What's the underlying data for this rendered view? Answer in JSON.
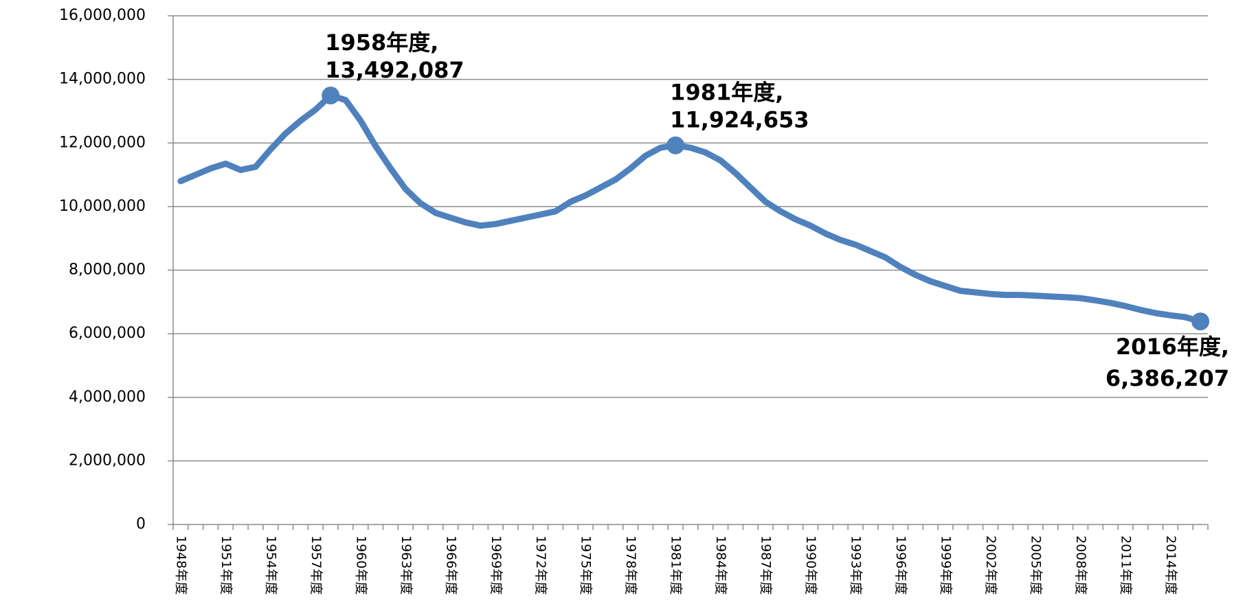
{
  "chart_data": {
    "type": "line",
    "categories": [
      "1948年度",
      null,
      null,
      "1951年度",
      null,
      null,
      "1954年度",
      null,
      null,
      "1957年度",
      null,
      null,
      "1960年度",
      null,
      null,
      "1963年度",
      null,
      null,
      "1966年度",
      null,
      null,
      "1969年度",
      null,
      null,
      "1972年度",
      null,
      null,
      "1975年度",
      null,
      null,
      "1978年度",
      null,
      null,
      "1981年度",
      null,
      null,
      "1984年度",
      null,
      null,
      "1987年度",
      null,
      null,
      "1990年度",
      null,
      null,
      "1993年度",
      null,
      null,
      "1996年度",
      null,
      null,
      "1999年度",
      null,
      null,
      "2002年度",
      null,
      null,
      "2005年度",
      null,
      null,
      "2008年度",
      null,
      null,
      "2011年度",
      null,
      null,
      "2014年度",
      null,
      null
    ],
    "series": [
      {
        "color": "#4f81bd",
        "values": [
          10800000,
          11000000,
          11200000,
          11350000,
          11150000,
          11250000,
          11800000,
          12300000,
          12700000,
          13050000,
          13492087,
          13350000,
          12700000,
          11900000,
          11200000,
          10550000,
          10100000,
          9800000,
          9650000,
          9500000,
          9400000,
          9450000,
          9550000,
          9650000,
          9750000,
          9850000,
          10150000,
          10350000,
          10600000,
          10850000,
          11200000,
          11600000,
          11850000,
          11924653,
          11850000,
          11700000,
          11450000,
          11050000,
          10600000,
          10150000,
          9850000,
          9600000,
          9400000,
          9150000,
          8950000,
          8800000,
          8600000,
          8400000,
          8100000,
          7850000,
          7650000,
          7500000,
          7350000,
          7300000,
          7250000,
          7220000,
          7220000,
          7200000,
          7170000,
          7150000,
          7120000,
          7050000,
          6970000,
          6870000,
          6750000,
          6650000,
          6580000,
          6520000,
          6386207
        ],
        "point_labels": [
          null,
          null,
          null,
          null,
          null,
          null,
          null,
          null,
          null,
          null,
          "1958年度,",
          null,
          null,
          null,
          null,
          null,
          null,
          null,
          null,
          null,
          null,
          null,
          null,
          null,
          null,
          null,
          null,
          null,
          null,
          null,
          null,
          null,
          null,
          "1981年度,",
          null,
          null,
          null,
          null,
          null,
          null,
          null,
          null,
          null,
          null,
          null,
          null,
          null,
          null,
          null,
          null,
          null,
          null,
          null,
          null,
          null,
          null,
          null,
          null,
          null,
          null,
          null,
          null,
          null,
          null,
          null,
          null,
          null,
          null,
          "2016年度,"
        ],
        "value_labels": [
          null,
          null,
          null,
          null,
          null,
          null,
          null,
          null,
          null,
          null,
          "13,492,087",
          null,
          null,
          null,
          null,
          null,
          null,
          null,
          null,
          null,
          null,
          null,
          null,
          null,
          null,
          null,
          null,
          null,
          null,
          null,
          null,
          null,
          null,
          "11,924,653",
          null,
          null,
          null,
          null,
          null,
          null,
          null,
          null,
          null,
          null,
          null,
          null,
          null,
          null,
          null,
          null,
          null,
          null,
          null,
          null,
          null,
          null,
          null,
          null,
          null,
          null,
          null,
          null,
          null,
          null,
          null,
          null,
          null,
          null,
          "6,386,207"
        ]
      }
    ],
    "ylim": [
      0,
      16000000
    ],
    "yticks": [
      0,
      {
        "value": 2000000,
        "label": "2,000,000"
      },
      {
        "value": 4000000,
        "label": "4,000,000"
      },
      {
        "value": 6000000,
        "label": "6,000,000"
      },
      {
        "value": 8000000,
        "label": "8,000,000"
      },
      {
        "value": 10000000,
        "label": "10,000,000"
      },
      {
        "value": 12000000,
        "label": "12,000,000"
      },
      {
        "value": 14000000,
        "label": "14,000,000"
      },
      {
        "value": 16000000,
        "label": "16,000,000"
      }
    ],
    "grid": true
  }
}
